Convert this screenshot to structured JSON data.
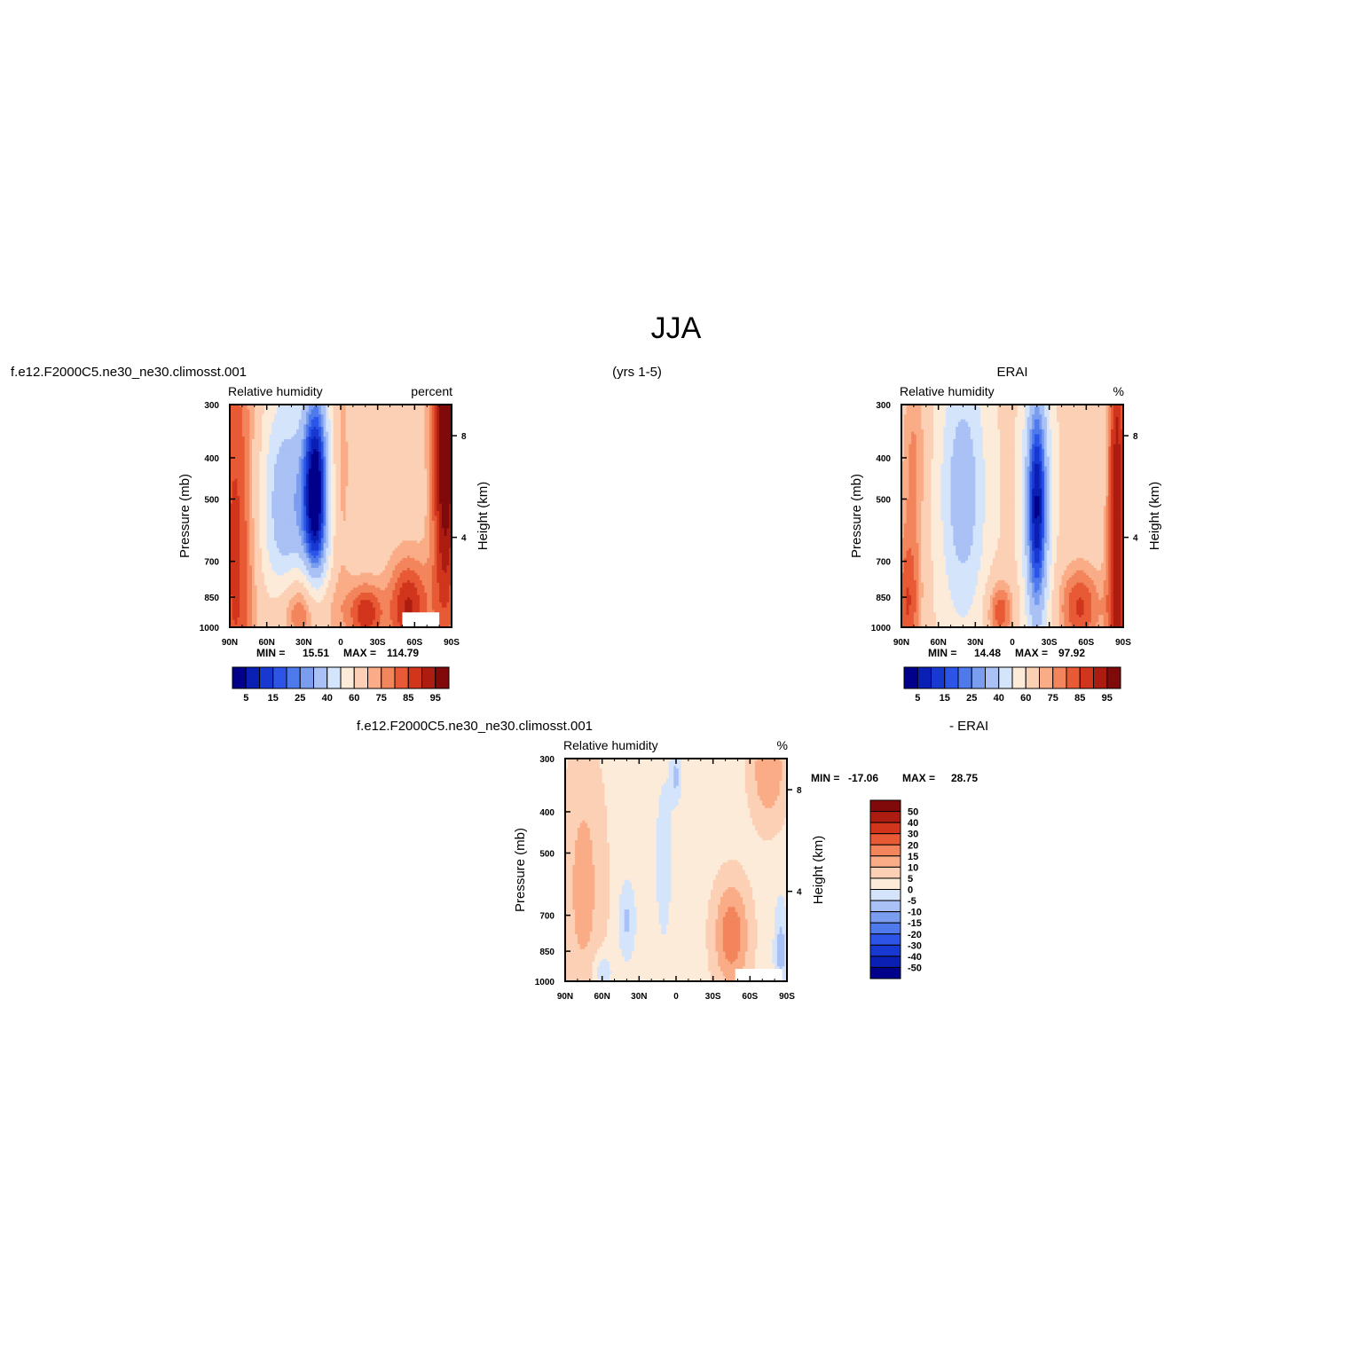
{
  "figure": {
    "title": "JJA",
    "case_name": "f.e12.F2000C5.ne30_ne30.climosst.001",
    "years_label": "(yrs 1-5)",
    "obs_name": "ERAI",
    "diff_label": "- ERAI"
  },
  "chart_data": [
    {
      "id": "model",
      "type": "heatmap",
      "subtitle_left": "Relative humidity",
      "subtitle_right": "percent",
      "ylabel": "Pressure (mb)",
      "ylabel_right": "Height (km)",
      "x_ticks": [
        "90N",
        "60N",
        "30N",
        "0",
        "30S",
        "60S",
        "90S"
      ],
      "y_ticks": [
        300,
        400,
        500,
        700,
        850,
        1000
      ],
      "y2_ticks": [
        8,
        4
      ],
      "xlim": [
        90,
        -90
      ],
      "ylim": [
        1000,
        300
      ],
      "log_y": true,
      "stats": {
        "min_label": "MIN =",
        "min": "15.51",
        "max_label": "MAX =",
        "max": "114.79"
      },
      "colorbar": {
        "orientation": "horizontal",
        "levels": [
          5,
          10,
          15,
          20,
          25,
          30,
          40,
          50,
          60,
          70,
          75,
          80,
          85,
          90,
          95
        ],
        "labels": [
          "5",
          "15",
          "25",
          "40",
          "60",
          "75",
          "85",
          "95"
        ]
      },
      "field": {
        "base": 65,
        "bumps": [
          {
            "lat": 20,
            "p": 480,
            "amp": -62,
            "wlat": 8,
            "wp": 0.45
          },
          {
            "lat": 45,
            "p": 520,
            "amp": -34,
            "wlat": 14,
            "wp": 0.45
          },
          {
            "lat": 30,
            "p": 900,
            "amp": 30,
            "wlat": 16,
            "wp": 0.16
          },
          {
            "lat": -20,
            "p": 930,
            "amp": 24,
            "wlat": 10,
            "wp": 0.12
          },
          {
            "lat": -55,
            "p": 900,
            "amp": 26,
            "wlat": 12,
            "wp": 0.2
          },
          {
            "lat": -85,
            "p": 350,
            "amp": 38,
            "wlat": 8,
            "wp": 0.8
          },
          {
            "lat": 85,
            "p": 650,
            "amp": 22,
            "wlat": 12,
            "wp": 1.0
          },
          {
            "lat": 0,
            "p": 420,
            "amp": 8,
            "wlat": 6,
            "wp": 0.5
          }
        ],
        "mask": {
          "lat": [
            -50,
            -80
          ],
          "p": [
            920,
            1000
          ]
        }
      }
    },
    {
      "id": "obs",
      "type": "heatmap",
      "subtitle_left": "Relative humidity",
      "subtitle_right": "%",
      "ylabel": "Pressure (mb)",
      "ylabel_right": "Height (km)",
      "x_ticks": [
        "90N",
        "60N",
        "30N",
        "0",
        "30S",
        "60S",
        "90S"
      ],
      "y_ticks": [
        300,
        400,
        500,
        700,
        850,
        1000
      ],
      "y2_ticks": [
        8,
        4
      ],
      "xlim": [
        90,
        -90
      ],
      "ylim": [
        1000,
        300
      ],
      "log_y": true,
      "stats": {
        "min_label": "MIN =",
        "min": "14.48",
        "max_label": "MAX =",
        "max": "97.92"
      },
      "colorbar": {
        "orientation": "horizontal",
        "levels": [
          5,
          10,
          15,
          20,
          25,
          30,
          40,
          50,
          60,
          70,
          75,
          80,
          85,
          90,
          95
        ],
        "labels": [
          "5",
          "15",
          "25",
          "40",
          "60",
          "75",
          "85",
          "95"
        ]
      },
      "field": {
        "base": 62,
        "bumps": [
          {
            "lat": -20,
            "p": 520,
            "amp": -58,
            "wlat": 7,
            "wp": 0.5
          },
          {
            "lat": 40,
            "p": 480,
            "amp": -30,
            "wlat": 13,
            "wp": 0.5
          },
          {
            "lat": 10,
            "p": 920,
            "amp": 22,
            "wlat": 8,
            "wp": 0.13
          },
          {
            "lat": -55,
            "p": 900,
            "amp": 24,
            "wlat": 13,
            "wp": 0.18
          },
          {
            "lat": -85,
            "p": 600,
            "amp": 32,
            "wlat": 6,
            "wp": 1.2
          },
          {
            "lat": 85,
            "p": 900,
            "amp": 22,
            "wlat": 8,
            "wp": 0.3
          },
          {
            "lat": 80,
            "p": 400,
            "amp": 14,
            "wlat": 8,
            "wp": 0.4
          }
        ],
        "mask": null
      }
    },
    {
      "id": "diff",
      "type": "heatmap",
      "subtitle_left": "Relative humidity",
      "subtitle_right": "%",
      "ylabel": "Pressure (mb)",
      "ylabel_right": "Height (km)",
      "x_ticks": [
        "90N",
        "60N",
        "30N",
        "0",
        "30S",
        "60S",
        "90S"
      ],
      "y_ticks": [
        300,
        400,
        500,
        700,
        850,
        1000
      ],
      "y2_ticks": [
        8,
        4
      ],
      "xlim": [
        90,
        -90
      ],
      "ylim": [
        1000,
        300
      ],
      "log_y": true,
      "stats": {
        "min_label": "MIN =",
        "min": "-17.06",
        "max_label": "MAX =",
        "max": "28.75"
      },
      "colorbar": {
        "orientation": "vertical",
        "levels": [
          -50,
          -40,
          -30,
          -20,
          -15,
          -10,
          -5,
          0,
          5,
          10,
          15,
          20,
          30,
          40,
          50
        ],
        "labels": [
          "50",
          "40",
          "30",
          "20",
          "15",
          "10",
          "5",
          "0",
          "-5",
          "-10",
          "-15",
          "-20",
          "-30",
          "-40",
          "-50"
        ]
      },
      "field": {
        "base": 3,
        "bumps": [
          {
            "lat": -45,
            "p": 780,
            "amp": 16,
            "wlat": 10,
            "wp": 0.2
          },
          {
            "lat": 75,
            "p": 600,
            "amp": 9,
            "wlat": 12,
            "wp": 0.5
          },
          {
            "lat": -75,
            "p": 320,
            "amp": 12,
            "wlat": 10,
            "wp": 0.2
          },
          {
            "lat": 40,
            "p": 720,
            "amp": -9,
            "wlat": 5,
            "wp": 0.15
          },
          {
            "lat": -85,
            "p": 850,
            "amp": -10,
            "wlat": 4,
            "wp": 0.2
          },
          {
            "lat": 0,
            "p": 330,
            "amp": -9,
            "wlat": 3,
            "wp": 0.1
          },
          {
            "lat": 60,
            "p": 950,
            "amp": -8,
            "wlat": 6,
            "wp": 0.08
          },
          {
            "lat": 10,
            "p": 520,
            "amp": -5,
            "wlat": 6,
            "wp": 0.4
          }
        ],
        "mask": {
          "lat": [
            -48,
            -85
          ],
          "p": [
            940,
            1000
          ]
        }
      }
    }
  ],
  "colors": {
    "palette": [
      "#00008a",
      "#0a1fb4",
      "#1838d2",
      "#2c55e8",
      "#4f7aec",
      "#7a9df0",
      "#a9c1f4",
      "#d4e4fb",
      "#fdebd9",
      "#fcd0b4",
      "#f9ac86",
      "#f3855c",
      "#e85a35",
      "#d1351c",
      "#ad1c10",
      "#800a0a"
    ],
    "mask": "#ffffff"
  }
}
